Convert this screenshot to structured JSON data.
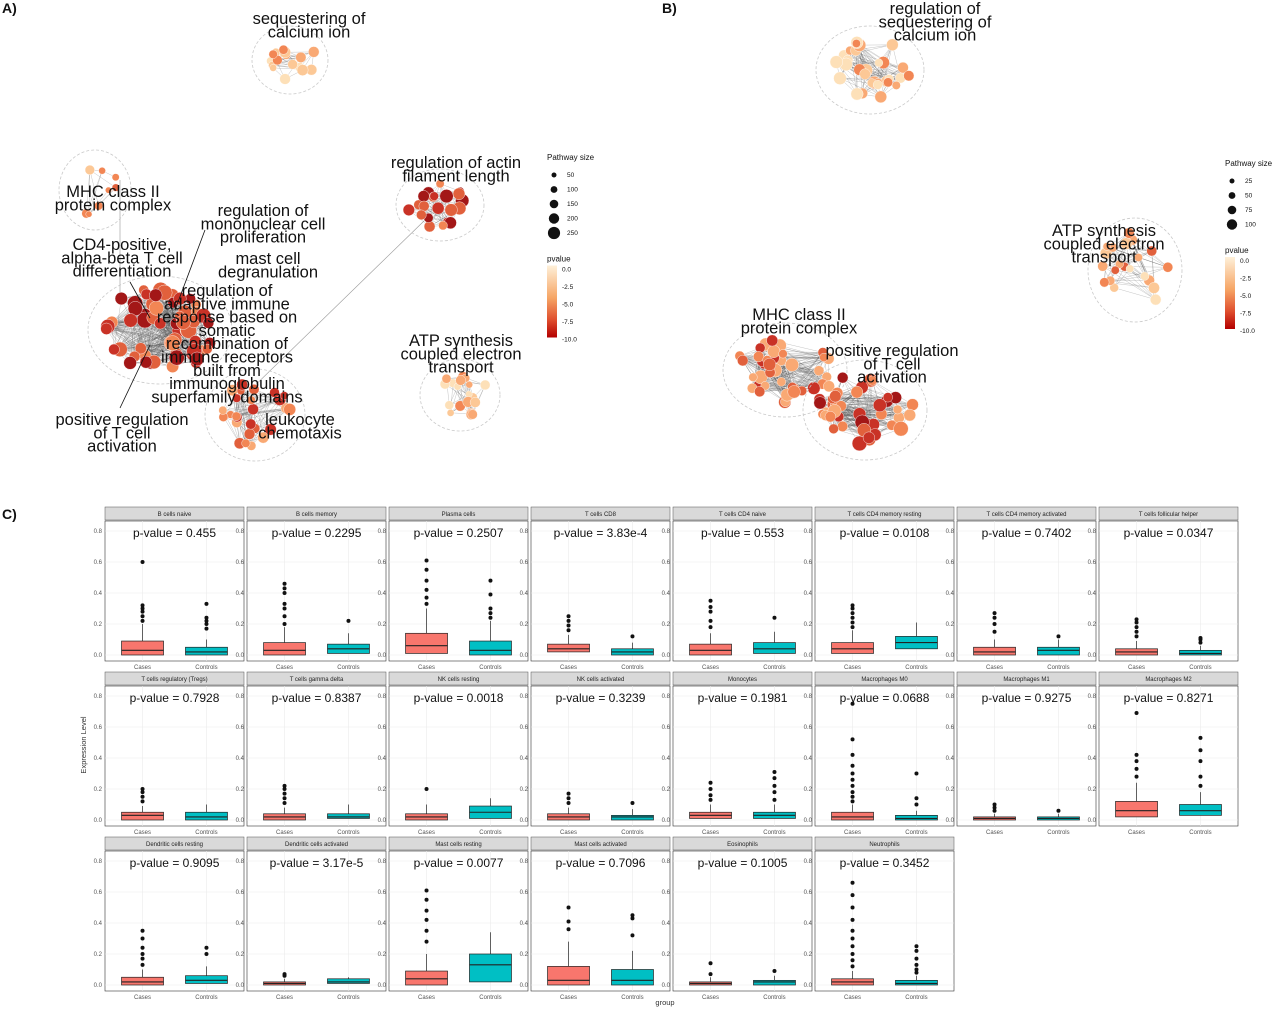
{
  "panels": {
    "a": "A)",
    "b": "B)",
    "c": "C)"
  },
  "network_a": {
    "labels": [
      {
        "lines": [
          "sequestering of",
          "calcium ion"
        ]
      },
      {
        "lines": [
          "regulation of actin",
          "filament length"
        ]
      },
      {
        "lines": [
          "MHC class II",
          "protein complex"
        ]
      },
      {
        "lines": [
          "regulation of",
          "mononuclear cell",
          "proliferation"
        ]
      },
      {
        "lines": [
          "CD4-positive,",
          "alpha-beta T cell",
          "differentiation"
        ]
      },
      {
        "lines": [
          "mast cell",
          "degranulation"
        ]
      },
      {
        "lines": [
          "regulation of",
          "adaptive immune",
          "response based on",
          "somatic",
          "recombination of",
          "immune receptors",
          "built from",
          "immunoglobulin",
          "superfamily domains"
        ]
      },
      {
        "lines": [
          "ATP synthesis",
          "coupled electron",
          "transport"
        ]
      },
      {
        "lines": [
          "leukocyte",
          "chemotaxis"
        ]
      },
      {
        "lines": [
          "positive regulation",
          "of T cell",
          "activation"
        ]
      }
    ],
    "legend": {
      "size_title": "Pathway size",
      "sizes": [
        "50",
        "100",
        "150",
        "200",
        "250"
      ],
      "color_title": "pvalue",
      "color_ticks": [
        "0.0",
        "-2.5",
        "-5.0",
        "-7.5",
        "-10.0"
      ]
    }
  },
  "network_b": {
    "labels": [
      {
        "lines": [
          "regulation of",
          "sequestering of",
          "calcium ion"
        ]
      },
      {
        "lines": [
          "ATP synthesis",
          "coupled electron",
          "transport"
        ]
      },
      {
        "lines": [
          "MHC class II",
          "protein complex"
        ]
      },
      {
        "lines": [
          "positive regulation",
          "of T cell",
          "activation"
        ]
      }
    ],
    "legend": {
      "size_title": "Pathway size",
      "sizes": [
        "25",
        "50",
        "75",
        "100"
      ],
      "color_title": "pvalue",
      "color_ticks": [
        "0.0",
        "-2.5",
        "-5.0",
        "-7.5",
        "-10.0"
      ]
    }
  },
  "chart_data": {
    "type": "box",
    "ylabel": "Expression Level",
    "xlabel": "group",
    "groups": [
      "Cases",
      "Controls"
    ],
    "y_ticks": [
      "0.0",
      "0.2",
      "0.4",
      "0.6",
      "0.8"
    ],
    "ylim": [
      0,
      0.8
    ],
    "colors": {
      "Cases": "#f8766d",
      "Controls": "#00bfc4"
    },
    "facets": [
      {
        "title": "B cells naive",
        "pvalue": "p-value = 0.455",
        "boxes": [
          {
            "q1": 0.0,
            "median": 0.03,
            "q3": 0.09,
            "whisker_high": 0.2,
            "outliers": [
              0.22,
              0.25,
              0.28,
              0.3,
              0.32,
              0.6
            ]
          },
          {
            "q1": 0.0,
            "median": 0.02,
            "q3": 0.05,
            "whisker_high": 0.1,
            "outliers": [
              0.17,
              0.2,
              0.22,
              0.24,
              0.33
            ]
          }
        ]
      },
      {
        "title": "B cells memory",
        "pvalue": "p-value = 0.2295",
        "boxes": [
          {
            "q1": 0.0,
            "median": 0.03,
            "q3": 0.08,
            "whisker_high": 0.18,
            "outliers": [
              0.2,
              0.25,
              0.3,
              0.33,
              0.4,
              0.43,
              0.46
            ]
          },
          {
            "q1": 0.01,
            "median": 0.04,
            "q3": 0.07,
            "whisker_high": 0.14,
            "outliers": [
              0.22
            ]
          }
        ]
      },
      {
        "title": "Plasma cells",
        "pvalue": "p-value = 0.2507",
        "boxes": [
          {
            "q1": 0.01,
            "median": 0.06,
            "q3": 0.14,
            "whisker_high": 0.3,
            "outliers": [
              0.33,
              0.37,
              0.42,
              0.48,
              0.55,
              0.61
            ]
          },
          {
            "q1": 0.0,
            "median": 0.03,
            "q3": 0.09,
            "whisker_high": 0.22,
            "outliers": [
              0.24,
              0.27,
              0.3,
              0.39,
              0.48
            ]
          }
        ]
      },
      {
        "title": "T cells CD8",
        "pvalue": "p-value = 3.83e-4",
        "boxes": [
          {
            "q1": 0.02,
            "median": 0.04,
            "q3": 0.07,
            "whisker_high": 0.13,
            "outliers": [
              0.16,
              0.19,
              0.22,
              0.25
            ]
          },
          {
            "q1": 0.0,
            "median": 0.02,
            "q3": 0.04,
            "whisker_high": 0.08,
            "outliers": [
              0.12
            ]
          }
        ]
      },
      {
        "title": "T cells CD4 naive",
        "pvalue": "p-value = 0.553",
        "boxes": [
          {
            "q1": 0.0,
            "median": 0.03,
            "q3": 0.07,
            "whisker_high": 0.14,
            "outliers": [
              0.18,
              0.22,
              0.28,
              0.31,
              0.35
            ]
          },
          {
            "q1": 0.01,
            "median": 0.04,
            "q3": 0.08,
            "whisker_high": 0.15,
            "outliers": [
              0.24
            ]
          }
        ]
      },
      {
        "title": "T cells CD4 memory resting",
        "pvalue": "p-value = 0.0108",
        "boxes": [
          {
            "q1": 0.01,
            "median": 0.04,
            "q3": 0.08,
            "whisker_high": 0.16,
            "outliers": [
              0.18,
              0.21,
              0.24,
              0.27,
              0.3,
              0.32
            ]
          },
          {
            "q1": 0.04,
            "median": 0.08,
            "q3": 0.12,
            "whisker_high": 0.21,
            "outliers": []
          }
        ]
      },
      {
        "title": "T cells CD4 memory activated",
        "pvalue": "p-value = 0.7402",
        "boxes": [
          {
            "q1": 0.0,
            "median": 0.02,
            "q3": 0.05,
            "whisker_high": 0.1,
            "outliers": [
              0.15,
              0.2,
              0.24,
              0.27
            ]
          },
          {
            "q1": 0.0,
            "median": 0.03,
            "q3": 0.05,
            "whisker_high": 0.1,
            "outliers": [
              0.12
            ]
          }
        ]
      },
      {
        "title": "T cells follicular helper",
        "pvalue": "p-value = 0.0347",
        "boxes": [
          {
            "q1": 0.0,
            "median": 0.02,
            "q3": 0.04,
            "whisker_high": 0.09,
            "outliers": [
              0.12,
              0.15,
              0.18,
              0.21,
              0.23
            ]
          },
          {
            "q1": 0.0,
            "median": 0.01,
            "q3": 0.03,
            "whisker_high": 0.06,
            "outliers": [
              0.08,
              0.1,
              0.11
            ]
          }
        ]
      },
      {
        "title": "T cells regulatory (Tregs)",
        "pvalue": "p-value = 0.7928",
        "boxes": [
          {
            "q1": 0.0,
            "median": 0.03,
            "q3": 0.05,
            "whisker_high": 0.09,
            "outliers": [
              0.12,
              0.15,
              0.18,
              0.2
            ]
          },
          {
            "q1": 0.0,
            "median": 0.02,
            "q3": 0.05,
            "whisker_high": 0.1,
            "outliers": []
          }
        ]
      },
      {
        "title": "T cells gamma delta",
        "pvalue": "p-value = 0.8387",
        "boxes": [
          {
            "q1": 0.0,
            "median": 0.02,
            "q3": 0.04,
            "whisker_high": 0.08,
            "outliers": [
              0.11,
              0.14,
              0.17,
              0.2,
              0.22
            ]
          },
          {
            "q1": 0.01,
            "median": 0.02,
            "q3": 0.04,
            "whisker_high": 0.1,
            "outliers": []
          }
        ]
      },
      {
        "title": "NK cells resting",
        "pvalue": "p-value = 0.0018",
        "boxes": [
          {
            "q1": 0.0,
            "median": 0.02,
            "q3": 0.04,
            "whisker_high": 0.1,
            "outliers": [
              0.2
            ]
          },
          {
            "q1": 0.01,
            "median": 0.05,
            "q3": 0.09,
            "whisker_high": 0.14,
            "outliers": []
          }
        ]
      },
      {
        "title": "NK cells activated",
        "pvalue": "p-value = 0.3239",
        "boxes": [
          {
            "q1": 0.0,
            "median": 0.02,
            "q3": 0.04,
            "whisker_high": 0.08,
            "outliers": [
              0.11,
              0.14,
              0.17
            ]
          },
          {
            "q1": 0.0,
            "median": 0.02,
            "q3": 0.03,
            "whisker_high": 0.07,
            "outliers": [
              0.11
            ]
          }
        ]
      },
      {
        "title": "Monocytes",
        "pvalue": "p-value = 0.1981",
        "boxes": [
          {
            "q1": 0.01,
            "median": 0.03,
            "q3": 0.05,
            "whisker_high": 0.1,
            "outliers": [
              0.13,
              0.16,
              0.2,
              0.24
            ]
          },
          {
            "q1": 0.01,
            "median": 0.03,
            "q3": 0.05,
            "whisker_high": 0.1,
            "outliers": [
              0.13,
              0.18,
              0.22,
              0.27,
              0.31
            ]
          }
        ]
      },
      {
        "title": "Macrophages M0",
        "pvalue": "p-value = 0.0688",
        "boxes": [
          {
            "q1": 0.0,
            "median": 0.02,
            "q3": 0.05,
            "whisker_high": 0.1,
            "outliers": [
              0.12,
              0.15,
              0.18,
              0.22,
              0.26,
              0.3,
              0.35,
              0.42,
              0.52,
              0.75
            ]
          },
          {
            "q1": 0.0,
            "median": 0.01,
            "q3": 0.03,
            "whisker_high": 0.06,
            "outliers": [
              0.1,
              0.14,
              0.3
            ]
          }
        ]
      },
      {
        "title": "Macrophages M1",
        "pvalue": "p-value = 0.9275",
        "boxes": [
          {
            "q1": 0.0,
            "median": 0.01,
            "q3": 0.02,
            "whisker_high": 0.04,
            "outliers": [
              0.06,
              0.08,
              0.1
            ]
          },
          {
            "q1": 0.0,
            "median": 0.01,
            "q3": 0.02,
            "whisker_high": 0.04,
            "outliers": [
              0.06
            ]
          }
        ]
      },
      {
        "title": "Macrophages M2",
        "pvalue": "p-value = 0.8271",
        "boxes": [
          {
            "q1": 0.02,
            "median": 0.06,
            "q3": 0.12,
            "whisker_high": 0.24,
            "outliers": [
              0.28,
              0.33,
              0.38,
              0.42,
              0.69
            ]
          },
          {
            "q1": 0.03,
            "median": 0.06,
            "q3": 0.1,
            "whisker_high": 0.18,
            "outliers": [
              0.22,
              0.28,
              0.38,
              0.45,
              0.53
            ]
          }
        ]
      },
      {
        "title": "Dendritic cells resting",
        "pvalue": "p-value = 0.9095",
        "boxes": [
          {
            "q1": 0.0,
            "median": 0.02,
            "q3": 0.05,
            "whisker_high": 0.1,
            "outliers": [
              0.13,
              0.17,
              0.2,
              0.24,
              0.3,
              0.35
            ]
          },
          {
            "q1": 0.01,
            "median": 0.03,
            "q3": 0.06,
            "whisker_high": 0.12,
            "outliers": [
              0.2,
              0.24
            ]
          }
        ]
      },
      {
        "title": "Dendritic cells activated",
        "pvalue": "p-value = 3.17e-5",
        "boxes": [
          {
            "q1": 0.0,
            "median": 0.01,
            "q3": 0.02,
            "whisker_high": 0.04,
            "outliers": [
              0.06,
              0.07
            ]
          },
          {
            "q1": 0.01,
            "median": 0.02,
            "q3": 0.04,
            "whisker_high": 0.05,
            "outliers": []
          }
        ]
      },
      {
        "title": "Mast cells resting",
        "pvalue": "p-value = 0.0077",
        "boxes": [
          {
            "q1": 0.0,
            "median": 0.04,
            "q3": 0.09,
            "whisker_high": 0.2,
            "outliers": [
              0.28,
              0.35,
              0.42,
              0.48,
              0.55,
              0.61
            ]
          },
          {
            "q1": 0.02,
            "median": 0.13,
            "q3": 0.2,
            "whisker_high": 0.34,
            "outliers": []
          }
        ]
      },
      {
        "title": "Mast cells activated",
        "pvalue": "p-value = 0.7096",
        "boxes": [
          {
            "q1": 0.0,
            "median": 0.03,
            "q3": 0.12,
            "whisker_high": 0.28,
            "outliers": [
              0.36,
              0.41,
              0.5
            ]
          },
          {
            "q1": 0.0,
            "median": 0.03,
            "q3": 0.1,
            "whisker_high": 0.22,
            "outliers": [
              0.32,
              0.43,
              0.45
            ]
          }
        ]
      },
      {
        "title": "Eosinophils",
        "pvalue": "p-value = 0.1005",
        "boxes": [
          {
            "q1": 0.0,
            "median": 0.01,
            "q3": 0.02,
            "whisker_high": 0.05,
            "outliers": [
              0.07,
              0.14
            ]
          },
          {
            "q1": 0.0,
            "median": 0.02,
            "q3": 0.03,
            "whisker_high": 0.06,
            "outliers": [
              0.09
            ]
          }
        ]
      },
      {
        "title": "Neutrophils",
        "pvalue": "p-value = 0.3452",
        "boxes": [
          {
            "q1": 0.0,
            "median": 0.02,
            "q3": 0.04,
            "whisker_high": 0.09,
            "outliers": [
              0.12,
              0.16,
              0.2,
              0.25,
              0.3,
              0.35,
              0.42,
              0.5,
              0.58,
              0.66
            ]
          },
          {
            "q1": 0.0,
            "median": 0.01,
            "q3": 0.03,
            "whisker_high": 0.06,
            "outliers": [
              0.08,
              0.1,
              0.13,
              0.17,
              0.22,
              0.25
            ]
          }
        ]
      }
    ]
  }
}
